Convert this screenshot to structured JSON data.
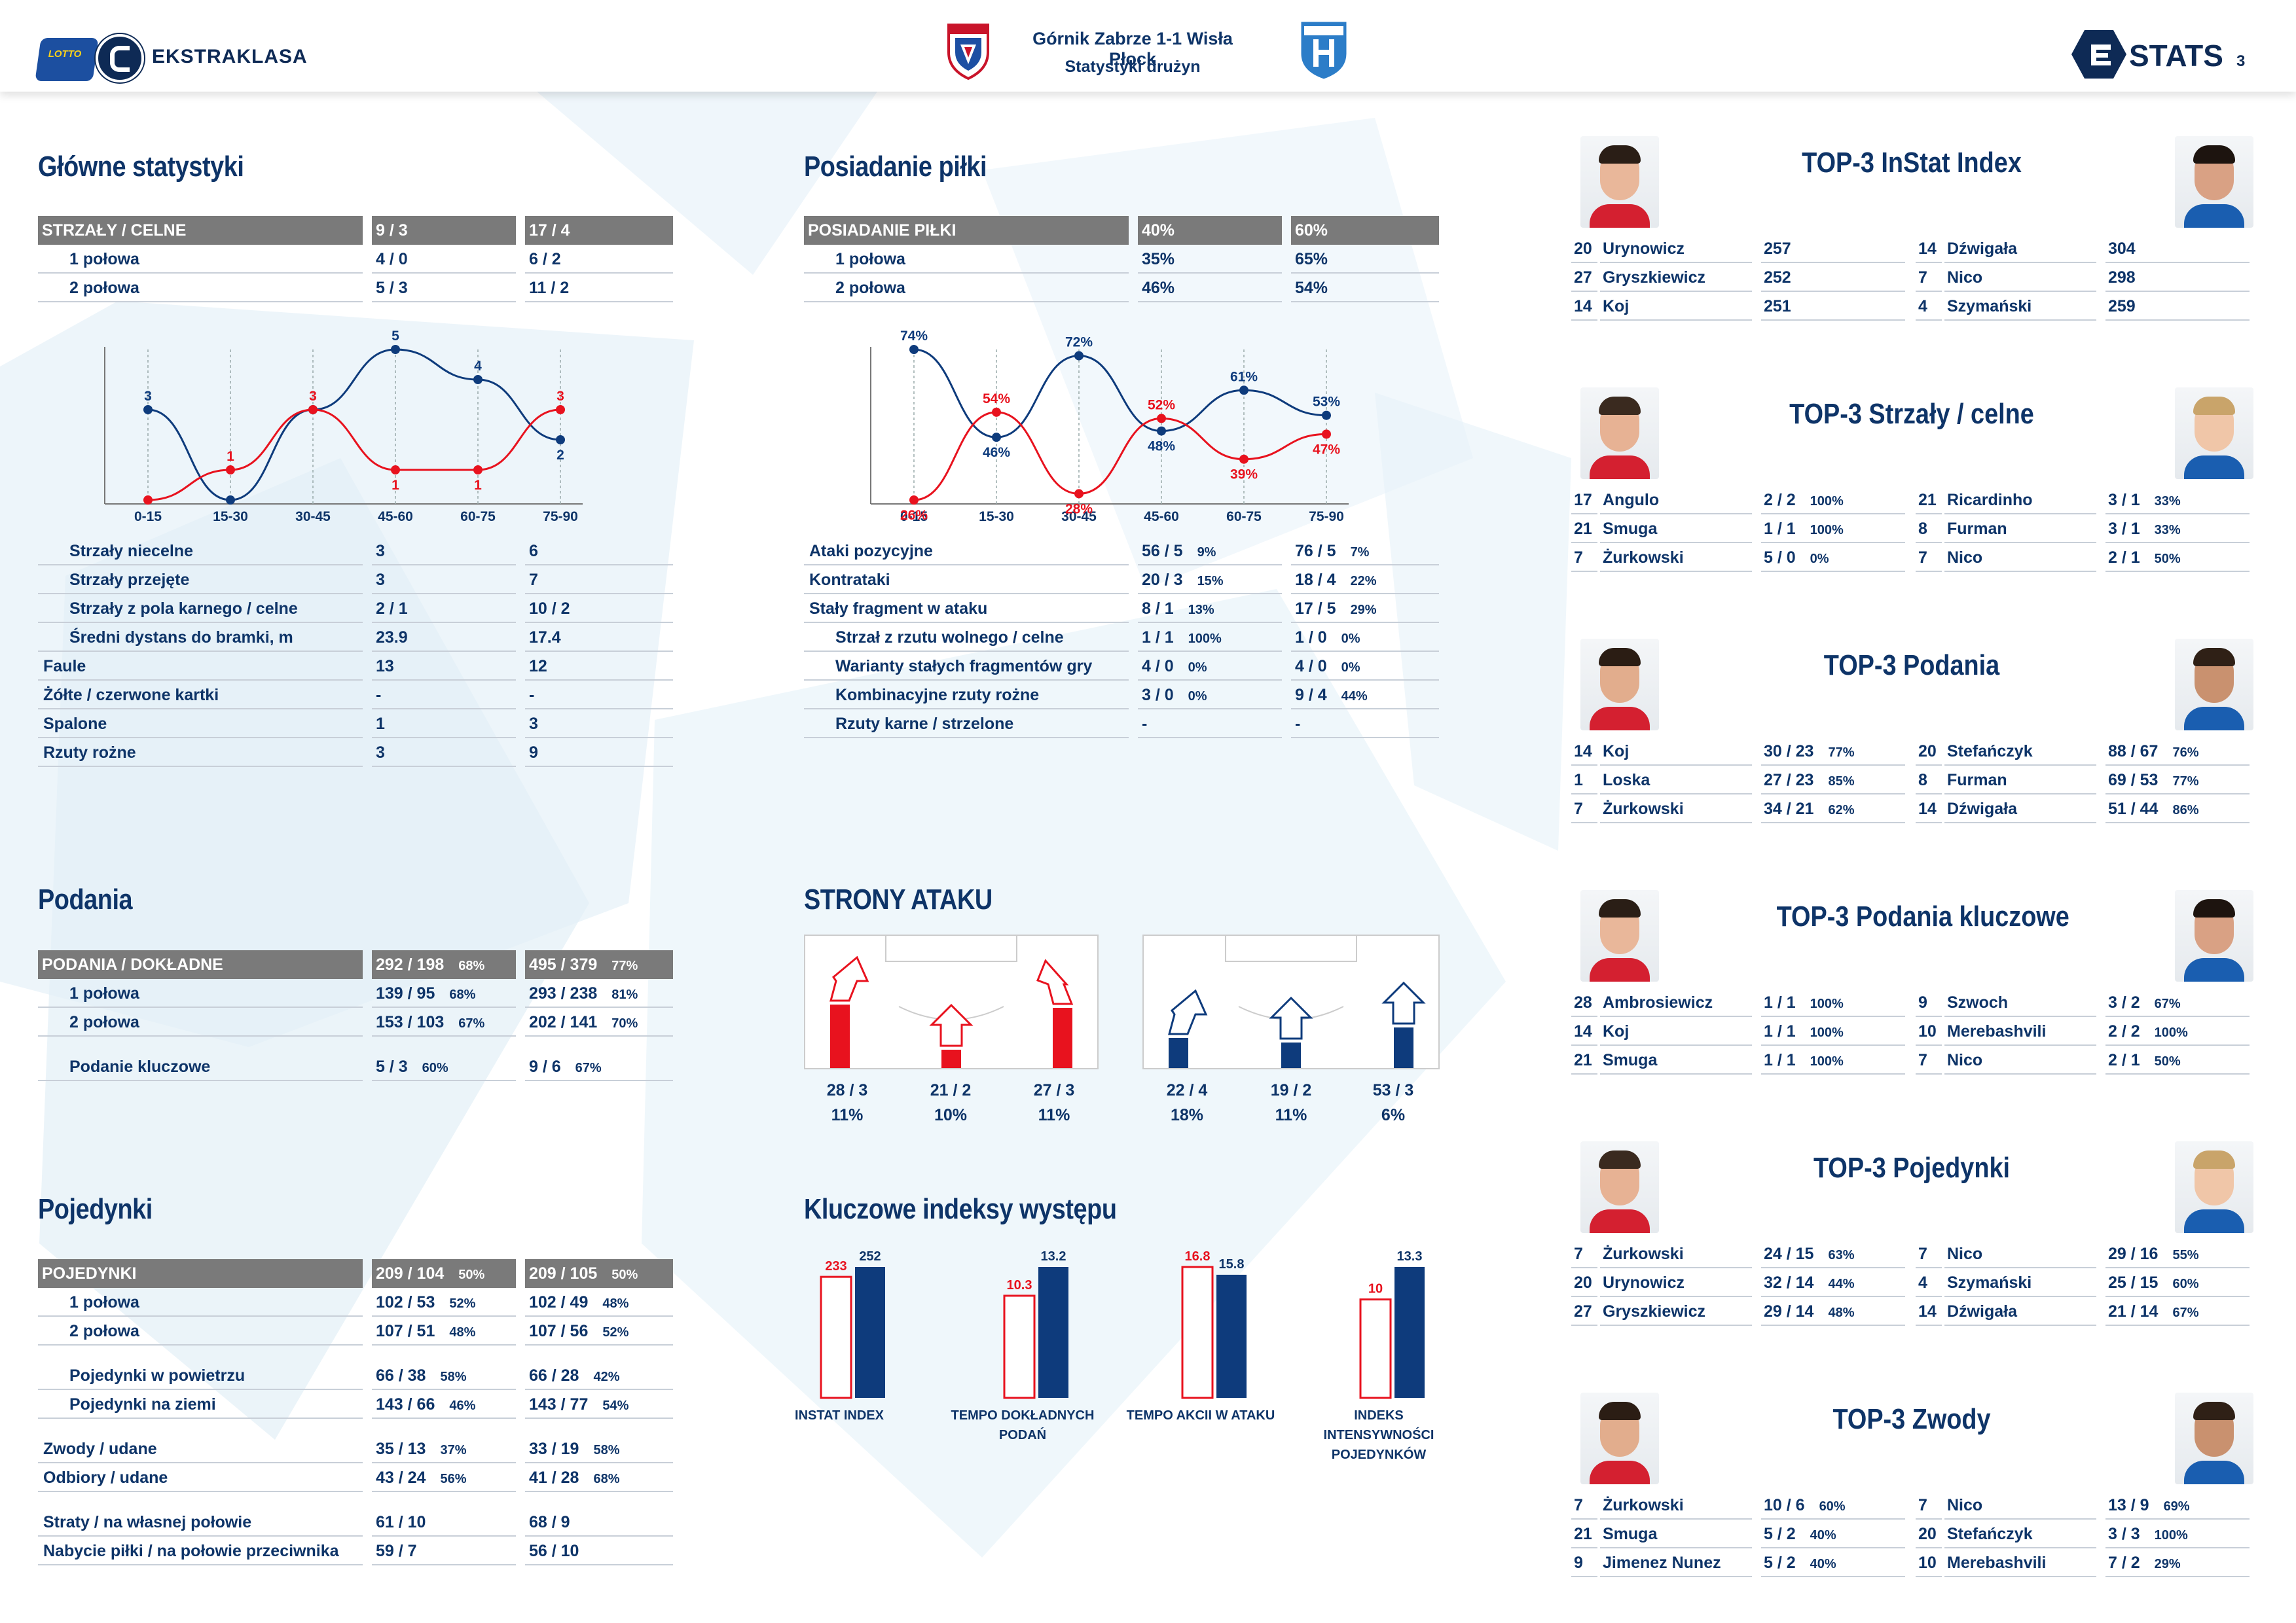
{
  "header": {
    "brand": "EKSTRAKLASA",
    "logo_lotto": "LOTTO",
    "match": "Górnik Zabrze 1-1 Wisła Płock",
    "subtitle": "Statystyki drużyn",
    "stats_brand": "STATS",
    "page_number": "3"
  },
  "colors": {
    "home": "#e8121e",
    "away": "#0e3b7c",
    "navy": "#0e3468",
    "header_gray": "#7a7a7a"
  },
  "main_stats": {
    "title": "Główne statystyki",
    "header": {
      "label": "STRZAŁY / CELNE",
      "home": "9 / 3",
      "away": "17 / 4"
    },
    "halves": [
      {
        "label": "1 połowa",
        "home": "4 / 0",
        "away": "6 / 2"
      },
      {
        "label": "2 połowa",
        "home": "5 / 3",
        "away": "11 / 2"
      }
    ],
    "rows": [
      {
        "label": "Strzały niecelne",
        "home": "3",
        "away": "6",
        "indent": true
      },
      {
        "label": "Strzały przejęte",
        "home": "3",
        "away": "7",
        "indent": true
      },
      {
        "label": "Strzały z pola karnego / celne",
        "home": "2 / 1",
        "away": "10 / 2",
        "indent": true
      },
      {
        "label": "Średni dystans do bramki, m",
        "home": "23.9",
        "away": "17.4",
        "indent": true
      },
      {
        "label": "Faule",
        "home": "13",
        "away": "12",
        "indent": false
      },
      {
        "label": "Żółte / czerwone kartki",
        "home": "-",
        "away": "-",
        "indent": false
      },
      {
        "label": "Spalone",
        "home": "1",
        "away": "3",
        "indent": false
      },
      {
        "label": "Rzuty rożne",
        "home": "3",
        "away": "9",
        "indent": false
      }
    ]
  },
  "possession": {
    "title": "Posiadanie piłki",
    "header": {
      "label": "POSIADANIE PIŁKI",
      "home": "40%",
      "away": "60%"
    },
    "halves": [
      {
        "label": "1 połowa",
        "home": "35%",
        "away": "65%"
      },
      {
        "label": "2 połowa",
        "home": "46%",
        "away": "54%"
      }
    ],
    "rows": [
      {
        "label": "Ataki pozycyjne",
        "home": "56 / 5",
        "home_pct": "9%",
        "away": "76 / 5",
        "away_pct": "7%",
        "indent": false
      },
      {
        "label": "Kontrataki",
        "home": "20 / 3",
        "home_pct": "15%",
        "away": "18 / 4",
        "away_pct": "22%",
        "indent": false
      },
      {
        "label": "Stały fragment w ataku",
        "home": "8 / 1",
        "home_pct": "13%",
        "away": "17 / 5",
        "away_pct": "29%",
        "indent": false
      },
      {
        "label": "Strzał z rzutu wolnego / celne",
        "home": "1 / 1",
        "home_pct": "100%",
        "away": "1 / 0",
        "away_pct": "0%",
        "indent": true
      },
      {
        "label": "Warianty stałych fragmentów gry",
        "home": "4 / 0",
        "home_pct": "0%",
        "away": "4 / 0",
        "away_pct": "0%",
        "indent": true
      },
      {
        "label": "Kombinacyjne rzuty rożne",
        "home": "3 / 0",
        "home_pct": "0%",
        "away": "9 / 4",
        "away_pct": "44%",
        "indent": true
      },
      {
        "label": "Rzuty karne / strzelone",
        "home": "-",
        "home_pct": "",
        "away": "-",
        "away_pct": "",
        "indent": true
      }
    ]
  },
  "chart_data": [
    {
      "type": "line",
      "title": "",
      "categories": [
        "0-15",
        "15-30",
        "30-45",
        "45-60",
        "60-75",
        "75-90"
      ],
      "series": [
        {
          "values": [
            3,
            0,
            3,
            5,
            4,
            2
          ],
          "color": "#0e3b7c",
          "labels": [
            "3",
            "",
            "",
            "5",
            "4",
            "2"
          ]
        },
        {
          "values": [
            0,
            1,
            3,
            1,
            1,
            3
          ],
          "color": "#e8121e",
          "labels": [
            "",
            "1",
            "3",
            "1",
            "1",
            "3"
          ]
        }
      ]
    },
    {
      "type": "line",
      "title": "",
      "categories": [
        "0-15",
        "15-30",
        "30-45",
        "45-60",
        "60-75",
        "75-90"
      ],
      "series": [
        {
          "values": [
            74,
            46,
            72,
            48,
            61,
            53
          ],
          "color": "#0e3b7c",
          "labels": [
            "74%",
            "46%",
            "72%",
            "48%",
            "61%",
            "53%"
          ]
        },
        {
          "values": [
            26,
            54,
            28,
            52,
            39,
            47
          ],
          "color": "#e8121e",
          "labels": [
            "26%",
            "54%",
            "28%",
            "52%",
            "39%",
            "47%"
          ]
        }
      ]
    },
    {
      "type": "bar",
      "title": "Kluczowe indeksy występu",
      "categories": [
        "INSTAT INDEX",
        "TEMPO DOKŁADNYCH PODAŃ",
        "TEMPO AKCII W ATAKU",
        "INDEKS INTENSYWNOŚCI POJEDYNKÓW"
      ],
      "series": [
        {
          "values": [
            233,
            10.3,
            16.8,
            10
          ],
          "color": "#e8121e"
        },
        {
          "values": [
            252,
            13.2,
            15.8,
            13.3
          ],
          "color": "#0e3b7c"
        }
      ]
    }
  ],
  "passes": {
    "title": "Podania",
    "header": {
      "label": "PODANIA / DOKŁADNE",
      "home": "292 / 198",
      "home_pct": "68%",
      "away": "495 / 379",
      "away_pct": "77%"
    },
    "rows": [
      {
        "label": "1 połowa",
        "home": "139 / 95",
        "home_pct": "68%",
        "away": "293 / 238",
        "away_pct": "81%"
      },
      {
        "label": "2 połowa",
        "home": "153 / 103",
        "home_pct": "67%",
        "away": "202 / 141",
        "away_pct": "70%"
      },
      {
        "label": "Podanie kluczowe",
        "home": "5 / 3",
        "home_pct": "60%",
        "away": "9 / 6",
        "away_pct": "67%"
      }
    ]
  },
  "attack_sides": {
    "title": "STRONY ATAKU",
    "home": [
      {
        "value": "28 / 3",
        "pct": "11%",
        "share": 0.42
      },
      {
        "value": "21 / 2",
        "pct": "10%",
        "share": 0.12
      },
      {
        "value": "27 / 3",
        "pct": "11%",
        "share": 0.4
      }
    ],
    "away": [
      {
        "value": "22 / 4",
        "pct": "18%",
        "share": 0.2
      },
      {
        "value": "19 / 2",
        "pct": "11%",
        "share": 0.17
      },
      {
        "value": "53 / 3",
        "pct": "6%",
        "share": 0.27
      }
    ]
  },
  "key_indices": {
    "title": "Kluczowe indeksy występu",
    "items": [
      {
        "label": "INSTAT INDEX",
        "home": "233",
        "away": "252"
      },
      {
        "label": "TEMPO DOKŁADNYCH PODAŃ",
        "home": "10.3",
        "away": "13.2"
      },
      {
        "label": "TEMPO AKCII W ATAKU",
        "home": "16.8",
        "away": "15.8"
      },
      {
        "label": "INDEKS INTENSYWNOŚCI POJEDYNKÓW",
        "home": "10",
        "away": "13.3"
      }
    ]
  },
  "duels": {
    "title": "Pojedynki",
    "header": {
      "label": "POJEDYNKI",
      "home": "209 / 104",
      "home_pct": "50%",
      "away": "209 / 105",
      "away_pct": "50%"
    },
    "rows": [
      {
        "label": "1 połowa",
        "home": "102 / 53",
        "home_pct": "52%",
        "away": "102 / 49",
        "away_pct": "48%",
        "indent": true
      },
      {
        "label": "2 połowa",
        "home": "107 / 51",
        "home_pct": "48%",
        "away": "107 / 56",
        "away_pct": "52%",
        "indent": true
      },
      {
        "label": "Pojedynki w powietrzu",
        "home": "66 / 38",
        "home_pct": "58%",
        "away": "66 / 28",
        "away_pct": "42%",
        "indent": true
      },
      {
        "label": "Pojedynki na ziemi",
        "home": "143 / 66",
        "home_pct": "46%",
        "away": "143 / 77",
        "away_pct": "54%",
        "indent": true
      },
      {
        "label": "Zwody / udane",
        "home": "35 / 13",
        "home_pct": "37%",
        "away": "33 / 19",
        "away_pct": "58%",
        "indent": false
      },
      {
        "label": "Odbiory / udane",
        "home": "43 / 24",
        "home_pct": "56%",
        "away": "41 / 28",
        "away_pct": "68%",
        "indent": false
      },
      {
        "label": "Straty / na własnej połowie",
        "home": "61 / 10",
        "home_pct": "",
        "away": "68 / 9",
        "away_pct": "",
        "indent": false
      },
      {
        "label": "Nabycie piłki / na połowie przeciwnika",
        "home": "59 / 7",
        "home_pct": "",
        "away": "56 / 10",
        "away_pct": "",
        "indent": false
      }
    ]
  },
  "top3": [
    {
      "title": "TOP-3 InStat Index",
      "home": [
        {
          "num": "20",
          "name": "Urynowicz",
          "val": "257",
          "pct": ""
        },
        {
          "num": "27",
          "name": "Gryszkiewicz",
          "val": "252",
          "pct": ""
        },
        {
          "num": "14",
          "name": "Koj",
          "val": "251",
          "pct": ""
        }
      ],
      "away": [
        {
          "num": "14",
          "name": "Dźwigała",
          "val": "304",
          "pct": ""
        },
        {
          "num": "7",
          "name": "Nico",
          "val": "298",
          "pct": ""
        },
        {
          "num": "4",
          "name": "Szymański",
          "val": "259",
          "pct": ""
        }
      ]
    },
    {
      "title": "TOP-3 Strzały / celne",
      "home": [
        {
          "num": "17",
          "name": "Angulo",
          "val": "2 / 2",
          "pct": "100%"
        },
        {
          "num": "21",
          "name": "Smuga",
          "val": "1 / 1",
          "pct": "100%"
        },
        {
          "num": "7",
          "name": "Żurkowski",
          "val": "5 / 0",
          "pct": "0%"
        }
      ],
      "away": [
        {
          "num": "21",
          "name": "Ricardinho",
          "val": "3 / 1",
          "pct": "33%"
        },
        {
          "num": "8",
          "name": "Furman",
          "val": "3 / 1",
          "pct": "33%"
        },
        {
          "num": "7",
          "name": "Nico",
          "val": "2 / 1",
          "pct": "50%"
        }
      ]
    },
    {
      "title": "TOP-3 Podania",
      "home": [
        {
          "num": "14",
          "name": "Koj",
          "val": "30 / 23",
          "pct": "77%"
        },
        {
          "num": "1",
          "name": "Loska",
          "val": "27 / 23",
          "pct": "85%"
        },
        {
          "num": "7",
          "name": "Żurkowski",
          "val": "34 / 21",
          "pct": "62%"
        }
      ],
      "away": [
        {
          "num": "20",
          "name": "Stefańczyk",
          "val": "88 / 67",
          "pct": "76%"
        },
        {
          "num": "8",
          "name": "Furman",
          "val": "69 / 53",
          "pct": "77%"
        },
        {
          "num": "14",
          "name": "Dźwigała",
          "val": "51 / 44",
          "pct": "86%"
        }
      ]
    },
    {
      "title": "TOP-3 Podania kluczowe",
      "home": [
        {
          "num": "28",
          "name": "Ambrosiewicz",
          "val": "1 / 1",
          "pct": "100%"
        },
        {
          "num": "14",
          "name": "Koj",
          "val": "1 / 1",
          "pct": "100%"
        },
        {
          "num": "21",
          "name": "Smuga",
          "val": "1 / 1",
          "pct": "100%"
        }
      ],
      "away": [
        {
          "num": "9",
          "name": "Szwoch",
          "val": "3 / 2",
          "pct": "67%"
        },
        {
          "num": "10",
          "name": "Merebashvili",
          "val": "2 / 2",
          "pct": "100%"
        },
        {
          "num": "7",
          "name": "Nico",
          "val": "2 / 1",
          "pct": "50%"
        }
      ]
    },
    {
      "title": "TOP-3 Pojedynki",
      "home": [
        {
          "num": "7",
          "name": "Żurkowski",
          "val": "24 / 15",
          "pct": "63%"
        },
        {
          "num": "20",
          "name": "Urynowicz",
          "val": "32 / 14",
          "pct": "44%"
        },
        {
          "num": "27",
          "name": "Gryszkiewicz",
          "val": "29 / 14",
          "pct": "48%"
        }
      ],
      "away": [
        {
          "num": "7",
          "name": "Nico",
          "val": "29 / 16",
          "pct": "55%"
        },
        {
          "num": "4",
          "name": "Szymański",
          "val": "25 / 15",
          "pct": "60%"
        },
        {
          "num": "14",
          "name": "Dźwigała",
          "val": "21 / 14",
          "pct": "67%"
        }
      ]
    },
    {
      "title": "TOP-3 Zwody",
      "home": [
        {
          "num": "7",
          "name": "Żurkowski",
          "val": "10 / 6",
          "pct": "60%"
        },
        {
          "num": "21",
          "name": "Smuga",
          "val": "5 / 2",
          "pct": "40%"
        },
        {
          "num": "9",
          "name": "Jimenez Nunez",
          "val": "5 / 2",
          "pct": "40%"
        }
      ],
      "away": [
        {
          "num": "7",
          "name": "Nico",
          "val": "13 / 9",
          "pct": "69%"
        },
        {
          "num": "20",
          "name": "Stefańczyk",
          "val": "3 / 3",
          "pct": "100%"
        },
        {
          "num": "10",
          "name": "Merebashvili",
          "val": "7 / 2",
          "pct": "29%"
        }
      ]
    }
  ]
}
